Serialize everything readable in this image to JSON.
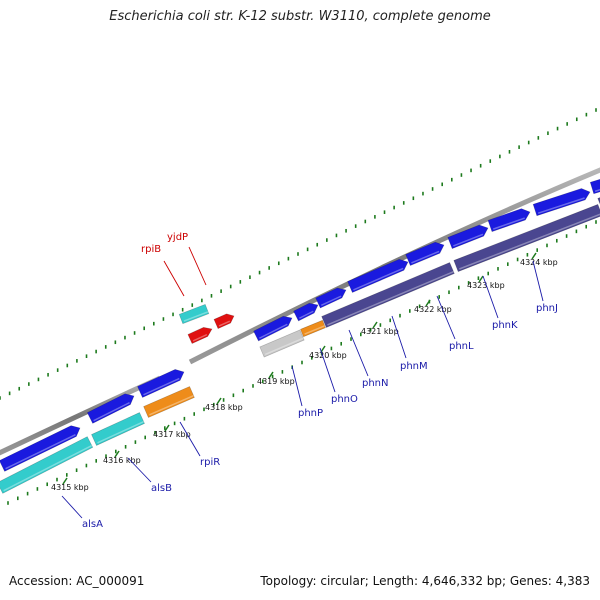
{
  "title": "Escherichia coli str. K-12 substr. W3110, complete genome",
  "footer": {
    "accession": "Accession: AC_000091",
    "topology": "Topology: circular; Length: 4,646,332 bp; Genes: 4,383"
  },
  "colors": {
    "backbone": "#7d7d7d",
    "forward_gene": "#1a1adf",
    "reverse_gene": "#4a4690",
    "cyan_gene": "#33cccc",
    "orange_gene": "#ee8c1a",
    "gray_gene": "#c8c8c8",
    "red_gene": "#e01010",
    "tick_mark": "#1d7a1d",
    "forward_label": "#1a1aa8",
    "highlight_label": "#cc0000"
  },
  "map": {
    "ticks": [
      {
        "value": 4315,
        "label": "4315 kbp"
      },
      {
        "value": 4316,
        "label": "4316 kbp"
      },
      {
        "value": 4317,
        "label": "4317 kbp"
      },
      {
        "value": 4318,
        "label": "4318 kbp"
      },
      {
        "value": 4319,
        "label": "4319 kbp"
      },
      {
        "value": 4320,
        "label": "4320 kbp"
      },
      {
        "value": 4321,
        "label": "4321 kbp"
      },
      {
        "value": 4322,
        "label": "4322 kbp"
      },
      {
        "value": 4323,
        "label": "4323 kbp"
      },
      {
        "value": 4324,
        "label": "4324 kbp"
      }
    ],
    "gene_labels": [
      {
        "name": "alsA",
        "style": "forward"
      },
      {
        "name": "alsB",
        "style": "forward"
      },
      {
        "name": "rpiR",
        "style": "forward"
      },
      {
        "name": "phnP",
        "style": "forward"
      },
      {
        "name": "phnO",
        "style": "forward"
      },
      {
        "name": "phnN",
        "style": "forward"
      },
      {
        "name": "phnM",
        "style": "forward"
      },
      {
        "name": "phnL",
        "style": "forward"
      },
      {
        "name": "phnK",
        "style": "forward"
      },
      {
        "name": "phnJ",
        "style": "forward"
      },
      {
        "name": "rpiB",
        "style": "highlight"
      },
      {
        "name": "yjdP",
        "style": "highlight"
      }
    ]
  }
}
